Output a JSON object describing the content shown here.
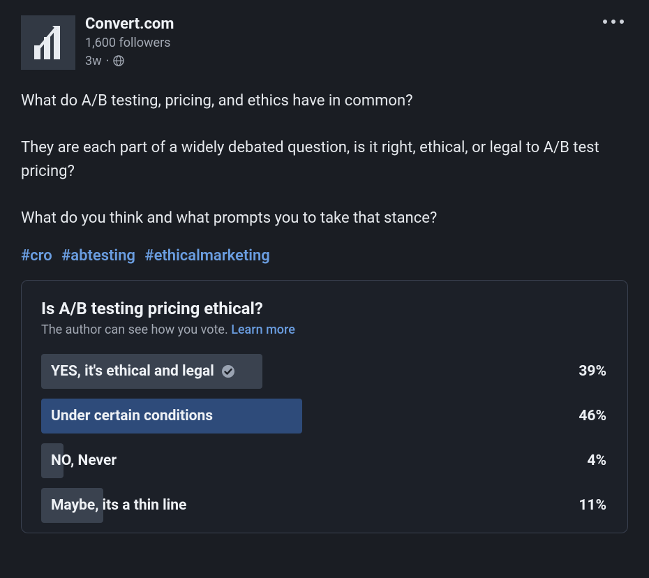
{
  "colors": {
    "background": "#1a1d23",
    "card_bg": "#1c2028",
    "card_border": "#3a4150",
    "text_primary": "#e6e9ed",
    "text_secondary": "#a2a8b3",
    "link": "#6a9de0",
    "bar_neutral": "#3a424f",
    "bar_highlight": "#2e4b7a",
    "avatar_bg": "#323944"
  },
  "header": {
    "author_name": "Convert.com",
    "followers": "1,600 followers",
    "time": "3w",
    "time_separator": "·",
    "visibility": "public"
  },
  "body": {
    "p1": "What do A/B testing, pricing, and ethics have in common?",
    "p2": "They are each part of a widely debated question, is it right, ethical, or legal to A/B test pricing?",
    "p3": "What do you think and what prompts you to take that stance?"
  },
  "hashtags": {
    "h1": "#cro",
    "h2": "#abtesting",
    "h3": "#ethicalmarketing"
  },
  "poll": {
    "title": "Is A/B testing pricing ethical?",
    "subtitle_prefix": "The author can see how you vote. ",
    "subtitle_link": "Learn more",
    "options": [
      {
        "label": "YES, it's ethical and legal",
        "percent": 39,
        "percent_label": "39%",
        "voted": true,
        "highlight": false
      },
      {
        "label": "Under certain conditions",
        "percent": 46,
        "percent_label": "46%",
        "voted": false,
        "highlight": true
      },
      {
        "label": "NO, Never",
        "percent": 4,
        "percent_label": "4%",
        "voted": false,
        "highlight": false
      },
      {
        "label": "Maybe, its a thin line",
        "percent": 11,
        "percent_label": "11%",
        "voted": false,
        "highlight": false
      }
    ]
  }
}
